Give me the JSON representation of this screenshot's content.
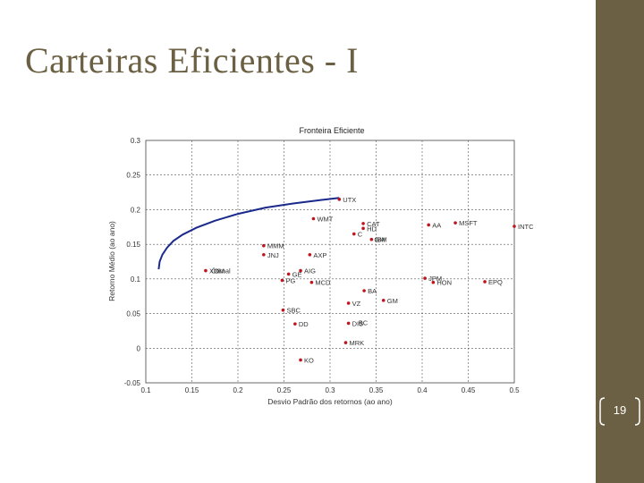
{
  "slide": {
    "title": "Carteiras Eficientes - I",
    "page_number": "19"
  },
  "colors": {
    "accent_band": "#6b6043",
    "frontier": "#1a2a8c",
    "points": "#c0141e"
  },
  "chart_data": {
    "type": "scatter",
    "title": "Fronteira Eficiente",
    "xlabel": "Desvio Padrão dos retornos (ao ano)",
    "ylabel": "Retorno Médio (ao ano)",
    "xlim": [
      0.1,
      0.5
    ],
    "ylim": [
      -0.05,
      0.3
    ],
    "x_ticks": [
      "0.1",
      "0.15",
      "0.2",
      "0.25",
      "0.3",
      "0.35",
      "0.4",
      "0.45",
      "0.5"
    ],
    "y_ticks": [
      "-0.05",
      "0",
      "0.05",
      "0.1",
      "0.15",
      "0.2",
      "0.25",
      "0.3"
    ],
    "grid": true,
    "frontier": {
      "x": [
        0.114,
        0.115,
        0.118,
        0.123,
        0.13,
        0.14,
        0.155,
        0.175,
        0.2,
        0.23,
        0.26,
        0.29,
        0.31
      ],
      "y": [
        0.114,
        0.125,
        0.135,
        0.145,
        0.155,
        0.164,
        0.174,
        0.184,
        0.194,
        0.203,
        0.209,
        0.214,
        0.217
      ]
    },
    "points": [
      {
        "label": "UTX",
        "x": 0.31,
        "y": 0.215
      },
      {
        "label": "WMT",
        "x": 0.282,
        "y": 0.187
      },
      {
        "label": "CAT",
        "x": 0.336,
        "y": 0.18
      },
      {
        "label": "HD",
        "x": 0.336,
        "y": 0.173
      },
      {
        "label": "C",
        "x": 0.326,
        "y": 0.165
      },
      {
        "label": "IBM",
        "x": 0.345,
        "y": 0.157
      },
      {
        "label": "AA",
        "x": 0.407,
        "y": 0.178
      },
      {
        "label": "MSFT",
        "x": 0.436,
        "y": 0.181
      },
      {
        "label": "INTC",
        "x": 0.5,
        "y": 0.176
      },
      {
        "label": "MMM",
        "x": 0.228,
        "y": 0.148
      },
      {
        "label": "JNJ",
        "x": 0.228,
        "y": 0.135
      },
      {
        "label": "AXP",
        "x": 0.278,
        "y": 0.135
      },
      {
        "label": "XOM",
        "x": 0.165,
        "y": 0.112
      },
      {
        "label": "AIG",
        "x": 0.268,
        "y": 0.112
      },
      {
        "label": "GE",
        "x": 0.255,
        "y": 0.107
      },
      {
        "label": "PG",
        "x": 0.248,
        "y": 0.098
      },
      {
        "label": "MCD",
        "x": 0.28,
        "y": 0.095
      },
      {
        "label": "JPM",
        "x": 0.403,
        "y": 0.101
      },
      {
        "label": "HON",
        "x": 0.412,
        "y": 0.095
      },
      {
        "label": "EPQ",
        "x": 0.468,
        "y": 0.096
      },
      {
        "label": "BA",
        "x": 0.337,
        "y": 0.083
      },
      {
        "label": "GM",
        "x": 0.358,
        "y": 0.069
      },
      {
        "label": "VZ",
        "x": 0.32,
        "y": 0.065
      },
      {
        "label": "SBC",
        "x": 0.249,
        "y": 0.055
      },
      {
        "label": "DD",
        "x": 0.262,
        "y": 0.035
      },
      {
        "label": "DIS",
        "x": 0.32,
        "y": 0.036
      },
      {
        "label": "MRK",
        "x": 0.317,
        "y": 0.008
      },
      {
        "label": "KO",
        "x": 0.268,
        "y": -0.017
      }
    ],
    "extra_labels": [
      {
        "text": "Ótimal",
        "x": 0.167,
        "y": 0.112
      },
      {
        "text": "GM",
        "x": 0.344,
        "y": 0.157
      },
      {
        "text": "BC",
        "x": 0.327,
        "y": 0.037
      }
    ]
  }
}
